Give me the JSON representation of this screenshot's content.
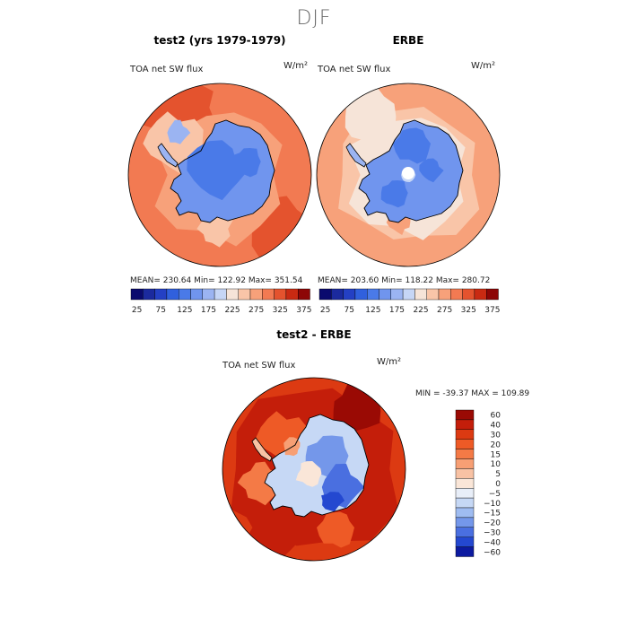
{
  "season": "DJF",
  "chart_data": [
    {
      "type": "heatmap",
      "title": "test2 (yrs 1979-1979)",
      "variable": "TOA net SW flux",
      "units": "W/m²",
      "projection": "south polar stereographic",
      "stats": "MEAN= 230.64    Min= 122.92    Max= 351.54",
      "mean": 230.64,
      "min": 122.92,
      "max": 351.54,
      "levels": [
        25,
        50,
        75,
        100,
        125,
        150,
        175,
        200,
        225,
        250,
        275,
        300,
        325,
        350,
        375
      ],
      "tick_labels": [
        "25",
        "75",
        "125",
        "175",
        "225",
        "275",
        "325",
        "375"
      ],
      "colors": [
        "#0a0a6e",
        "#1b2a9e",
        "#2440c4",
        "#3060dd",
        "#4a7ae8",
        "#7095ee",
        "#9bb4f2",
        "#c6d6f6",
        "#f6e4d8",
        "#f9c5a8",
        "#f7a17a",
        "#f27a52",
        "#e4532e",
        "#c92a12",
        "#8d0606"
      ]
    },
    {
      "type": "heatmap",
      "title": "ERBE",
      "variable": "TOA net SW flux",
      "units": "W/m²",
      "projection": "south polar stereographic",
      "stats": "MEAN= 203.60    Min= 118.22    Max= 280.72",
      "mean": 203.6,
      "min": 118.22,
      "max": 280.72,
      "levels": [
        25,
        50,
        75,
        100,
        125,
        150,
        175,
        200,
        225,
        250,
        275,
        300,
        325,
        350,
        375
      ],
      "tick_labels": [
        "25",
        "75",
        "125",
        "175",
        "225",
        "275",
        "325",
        "375"
      ],
      "colors": [
        "#0a0a6e",
        "#1b2a9e",
        "#2440c4",
        "#3060dd",
        "#4a7ae8",
        "#7095ee",
        "#9bb4f2",
        "#c6d6f6",
        "#f6e4d8",
        "#f9c5a8",
        "#f7a17a",
        "#f27a52",
        "#e4532e",
        "#c92a12",
        "#8d0606"
      ]
    },
    {
      "type": "heatmap",
      "title": "test2 - ERBE",
      "variable": "TOA net SW flux",
      "units": "W/m²",
      "projection": "south polar stereographic",
      "stats": "MIN = -39.37  MAX = 109.89",
      "min": -39.37,
      "max": 109.89,
      "levels": [
        "60",
        "40",
        "30",
        "20",
        "15",
        "10",
        "5",
        "0",
        "-5",
        "-10",
        "-15",
        "-20",
        "-30",
        "-40",
        "-60"
      ],
      "colors": [
        "#9a0a04",
        "#c41e0a",
        "#dc3a12",
        "#ee5a26",
        "#f47a46",
        "#f79f74",
        "#f8c2a4",
        "#fae6d8",
        "#e8eef8",
        "#c6d8f5",
        "#9fbcf1",
        "#7497ea",
        "#4a6fe0",
        "#2448d0",
        "#0c1aa0"
      ]
    }
  ]
}
